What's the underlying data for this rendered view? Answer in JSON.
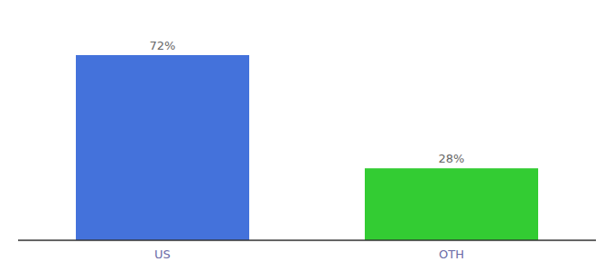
{
  "chart_data": {
    "type": "bar",
    "categories": [
      "US",
      "OTH"
    ],
    "values": [
      72,
      28
    ],
    "value_labels": [
      "72%",
      "28%"
    ],
    "colors": [
      "#4472db",
      "#33cc33"
    ],
    "ylim": [
      0,
      85
    ],
    "data_labels": true,
    "tick_labels": "x"
  }
}
